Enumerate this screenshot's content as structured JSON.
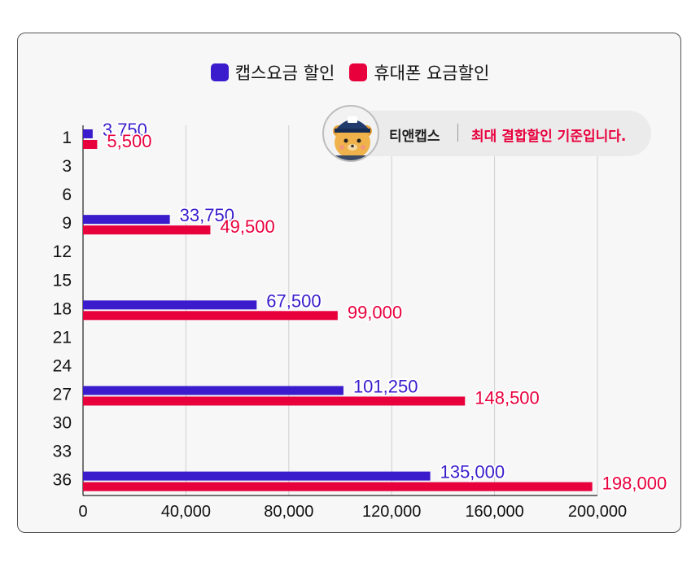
{
  "legend": [
    {
      "label": "캡스요금 할인",
      "color": "#3a1ccc"
    },
    {
      "label": "휴대폰 요금할인",
      "color": "#e8003d"
    }
  ],
  "callout": {
    "brand": "티앤캡스",
    "note": "최대 결합할인 기준입니다.",
    "avatar_icon": "bear-mascot-with-cap-icon"
  },
  "chart_data": {
    "type": "bar",
    "orientation": "horizontal",
    "categories": [
      "1",
      "3",
      "6",
      "9",
      "12",
      "15",
      "18",
      "21",
      "24",
      "27",
      "30",
      "33",
      "36"
    ],
    "series": [
      {
        "name": "캡스요금 할인",
        "color": "#3a1ccc",
        "values": [
          3750,
          null,
          null,
          33750,
          null,
          null,
          67500,
          null,
          null,
          101250,
          null,
          null,
          135000
        ],
        "labels": [
          "3,750",
          "",
          "",
          "33,750",
          "",
          "",
          "67,500",
          "",
          "",
          "101,250",
          "",
          "",
          "135,000"
        ]
      },
      {
        "name": "휴대폰 요금할인",
        "color": "#e8003d",
        "values": [
          5500,
          null,
          null,
          49500,
          null,
          null,
          99000,
          null,
          null,
          148500,
          null,
          null,
          198000
        ],
        "labels": [
          "5,500",
          "",
          "",
          "49,500",
          "",
          "",
          "99,000",
          "",
          "",
          "148,500",
          "",
          "",
          "198,000"
        ]
      }
    ],
    "xlim": [
      0,
      200000
    ],
    "xticks": [
      0,
      40000,
      80000,
      120000,
      160000,
      200000
    ],
    "xtick_labels": [
      "0",
      "40,000",
      "80,000",
      "120,000",
      "160,000",
      "200,000"
    ],
    "grid": true,
    "legend_position": "top-center"
  }
}
